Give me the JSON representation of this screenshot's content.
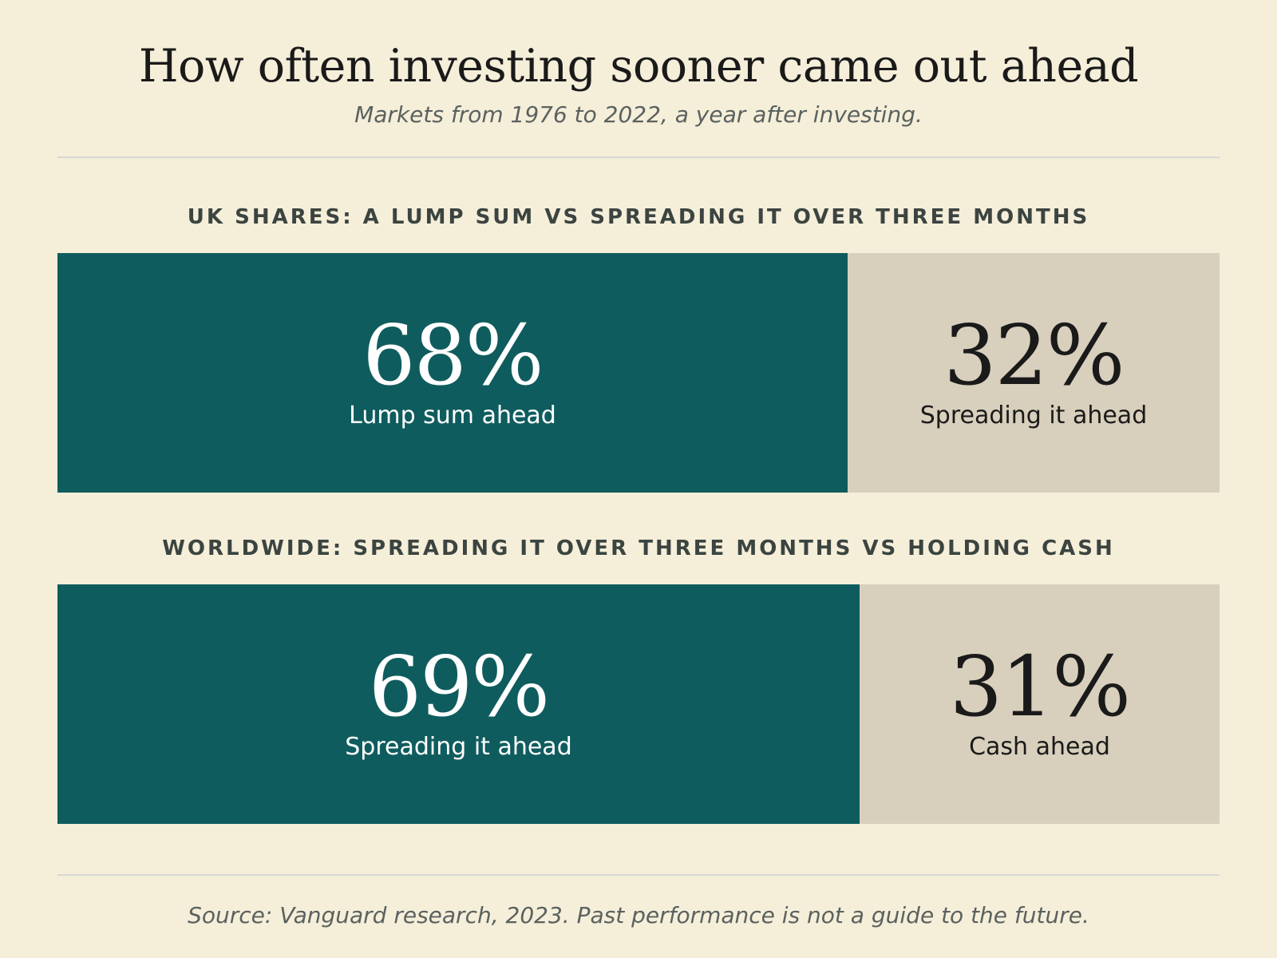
{
  "header": {
    "title": "How often investing sooner came out ahead",
    "subtitle": "Markets from 1976 to 2022, a year after investing."
  },
  "footer": {
    "source": "Source: Vanguard research, 2023. Past performance is not a guide to the future."
  },
  "colors": {
    "background": "#f5eed9",
    "lead": "#0f5c5e",
    "trail": "#d8cfbc"
  },
  "chart_data": [
    {
      "type": "bar",
      "title": "UK SHARES: A LUMP SUM VS SPREADING IT OVER THREE MONTHS",
      "orientation": "horizontal-stacked-100",
      "segments": [
        {
          "label": "Lump sum ahead",
          "value": 68,
          "display": "68%"
        },
        {
          "label": "Spreading it ahead",
          "value": 32,
          "display": "32%"
        }
      ]
    },
    {
      "type": "bar",
      "title": "WORLDWIDE: SPREADING IT OVER THREE MONTHS VS HOLDING CASH",
      "orientation": "horizontal-stacked-100",
      "segments": [
        {
          "label": "Spreading it ahead",
          "value": 69,
          "display": "69%"
        },
        {
          "label": "Cash ahead",
          "value": 31,
          "display": "31%"
        }
      ]
    }
  ]
}
